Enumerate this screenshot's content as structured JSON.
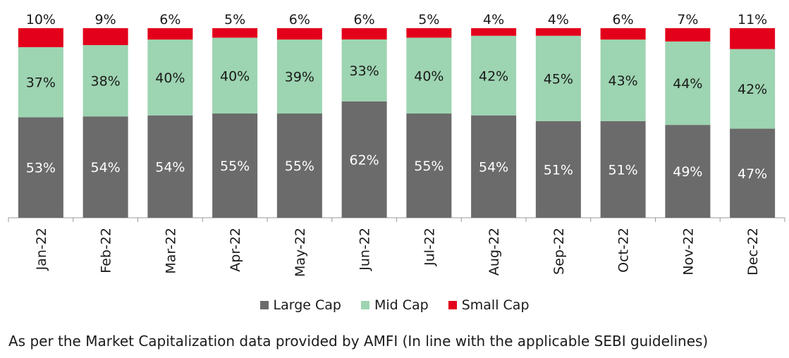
{
  "chart_data": {
    "type": "bar",
    "stacked": true,
    "normalized_percent": true,
    "categories": [
      "Jan-22",
      "Feb-22",
      "Mar-22",
      "Apr-22",
      "May-22",
      "Jun-22",
      "Jul-22",
      "Aug-22",
      "Sep-22",
      "Oct-22",
      "Nov-22",
      "Dec-22"
    ],
    "series": [
      {
        "name": "Large Cap",
        "color": "#6b6b6b",
        "label_color": "#ffffff",
        "values": [
          53,
          54,
          54,
          55,
          55,
          62,
          55,
          54,
          51,
          51,
          49,
          47
        ]
      },
      {
        "name": "Mid Cap",
        "color": "#9dd4b1",
        "label_color": "#1a1a1a",
        "values": [
          37,
          38,
          40,
          40,
          39,
          33,
          40,
          42,
          45,
          43,
          44,
          42
        ]
      },
      {
        "name": "Small Cap",
        "color": "#e3001b",
        "label_color": "#1a1a1a",
        "values": [
          10,
          9,
          6,
          5,
          6,
          6,
          5,
          4,
          4,
          6,
          7,
          11
        ]
      }
    ],
    "value_suffix": "%",
    "legend_position": "bottom",
    "grid": false,
    "title": "",
    "xlabel": "",
    "ylabel": ""
  },
  "footnote": "As per the Market Capitalization data provided by AMFI (In line with the applicable SEBI guidelines)"
}
